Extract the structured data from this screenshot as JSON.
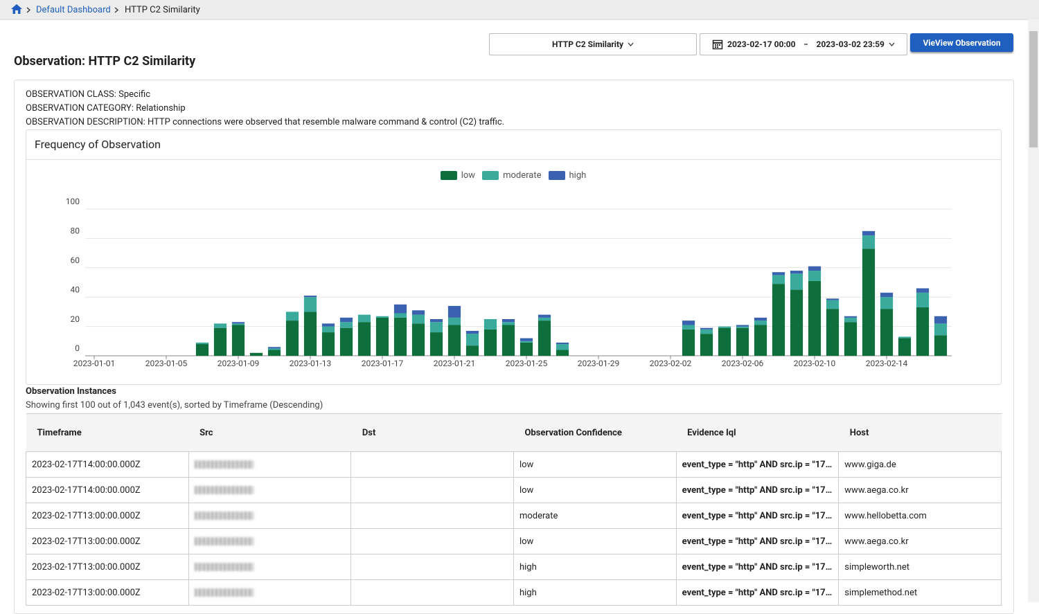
{
  "breadcrumb": {
    "link": "Default Dashboard",
    "current": "HTTP C2 Similarity"
  },
  "controls": {
    "observation_select": "HTTP C2 Similarity",
    "date_start": "2023-02-17 00:00",
    "date_end": "2023-03-02 23:59",
    "button": "VieView Observation"
  },
  "header": {
    "title": "Observation: HTTP C2 Similarity"
  },
  "info": [
    "OBSERVATION CLASS: Specific",
    "OBSERVATION CATEGORY: Relationship",
    "OBSERVATION DESCRIPTION: HTTP connections were observed that resemble malware command & control (C2) traffic."
  ],
  "panel_title": "Frequency of Observation",
  "chart_data": {
    "type": "stacked-bar",
    "categories": [
      "2023-01-01",
      null,
      null,
      null,
      "2023-01-05",
      null,
      null,
      null,
      "2023-01-09",
      null,
      null,
      null,
      "2023-01-13",
      null,
      null,
      null,
      "2023-01-17",
      null,
      null,
      null,
      "2023-01-21",
      null,
      null,
      null,
      "2023-01-25",
      null,
      null,
      null,
      "2023-01-29",
      null,
      null,
      null,
      "2023-02-02",
      null,
      null,
      null,
      "2023-02-06",
      null,
      null,
      null,
      "2023-02-10",
      null,
      null,
      null,
      "2023-02-14",
      null,
      null,
      null
    ],
    "series": [
      {
        "name": "low",
        "color": "#0e6e3c",
        "values": [
          0,
          0,
          0,
          0,
          0,
          0,
          8,
          19,
          21,
          2,
          4,
          24,
          30,
          16,
          19,
          23,
          26,
          26,
          22,
          16,
          21,
          7,
          18,
          21,
          9,
          24,
          4,
          0,
          0,
          0,
          0,
          0,
          0,
          18,
          15,
          19,
          19,
          21,
          49,
          45,
          51,
          32,
          23,
          73,
          32,
          12,
          33,
          14
        ]
      },
      {
        "name": "moderate",
        "color": "#3aaa9c",
        "values": [
          0,
          0,
          0,
          0,
          0,
          0,
          1,
          3,
          1,
          0,
          1,
          6,
          10,
          4,
          4,
          5,
          1,
          3,
          6,
          7,
          5,
          8,
          7,
          2,
          1,
          2,
          4,
          0,
          0,
          0,
          0,
          0,
          0,
          3,
          3,
          1,
          1,
          3,
          6,
          11,
          7,
          6,
          3,
          9,
          8,
          1,
          10,
          8
        ]
      },
      {
        "name": "high",
        "color": "#3b62b0",
        "values": [
          0,
          0,
          0,
          0,
          0,
          0,
          0,
          0,
          1,
          0,
          1,
          0,
          1,
          2,
          3,
          0,
          0,
          6,
          3,
          2,
          8,
          2,
          0,
          2,
          2,
          2,
          1,
          0,
          0,
          0,
          0,
          0,
          0,
          3,
          1,
          0,
          1,
          2,
          2,
          2,
          3,
          1,
          1,
          3,
          3,
          0,
          3,
          5
        ]
      }
    ],
    "ylim": [
      0,
      100
    ],
    "yticks": [
      0,
      20,
      40,
      60,
      80,
      100
    ],
    "grid": true,
    "legend": "top"
  },
  "instances": {
    "title": "Observation Instances",
    "subtitle": "Showing first 100 out of 1,043 event(s), sorted by Timeframe (Descending)"
  },
  "table": {
    "columns": [
      "Timeframe",
      "Src",
      "Dst",
      "Observation Confidence",
      "Evidence Iql",
      "Host"
    ],
    "rows": [
      {
        "timeframe": "2023-02-17T14:00:00.000Z",
        "confidence": "low",
        "evidence": "event_type = \"http\" AND src.ip = \"17...",
        "host": "www.giga.de"
      },
      {
        "timeframe": "2023-02-17T14:00:00.000Z",
        "confidence": "low",
        "evidence": "event_type = \"http\" AND src.ip = \"17...",
        "host": "www.aega.co.kr"
      },
      {
        "timeframe": "2023-02-17T13:00:00.000Z",
        "confidence": "moderate",
        "evidence": "event_type = \"http\" AND src.ip = \"17...",
        "host": "www.hellobetta.com"
      },
      {
        "timeframe": "2023-02-17T13:00:00.000Z",
        "confidence": "low",
        "evidence": "event_type = \"http\" AND src.ip = \"17...",
        "host": "www.aega.co.kr"
      },
      {
        "timeframe": "2023-02-17T13:00:00.000Z",
        "confidence": "high",
        "evidence": "event_type = \"http\" AND src.ip = \"17...",
        "host": "simpleworth.net"
      },
      {
        "timeframe": "2023-02-17T13:00:00.000Z",
        "confidence": "high",
        "evidence": "event_type = \"http\" AND src.ip = \"17...",
        "host": "simplemethod.net"
      }
    ]
  }
}
